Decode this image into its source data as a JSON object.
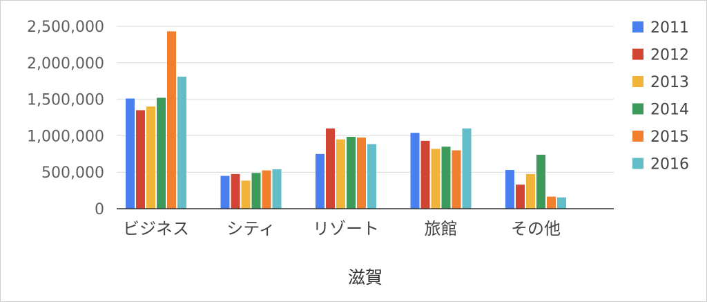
{
  "chart_data": {
    "type": "bar",
    "title": "",
    "xlabel": "滋賀",
    "ylabel": "",
    "categories": [
      "ビジネス",
      "シティ",
      "リゾート",
      "旅館",
      "その他"
    ],
    "ylim": [
      0,
      2500000
    ],
    "yticks": [
      0,
      500000,
      1000000,
      1500000,
      2000000,
      2500000
    ],
    "ytick_labels": [
      "0",
      "500,000",
      "1,000,000",
      "1,500,000",
      "2,000,000",
      "2,500,000"
    ],
    "grid": true,
    "legend_position": "right",
    "series": [
      {
        "name": "2011",
        "color": "#4a7ff0",
        "values": [
          1510000,
          450000,
          750000,
          1040000,
          530000
        ]
      },
      {
        "name": "2012",
        "color": "#d24535",
        "values": [
          1350000,
          475000,
          1100000,
          930000,
          330000
        ]
      },
      {
        "name": "2013",
        "color": "#f1b43a",
        "values": [
          1400000,
          385000,
          950000,
          820000,
          475000
        ]
      },
      {
        "name": "2014",
        "color": "#3c9a5a",
        "values": [
          1520000,
          490000,
          985000,
          850000,
          740000
        ]
      },
      {
        "name": "2015",
        "color": "#f07f2e",
        "values": [
          2430000,
          525000,
          975000,
          800000,
          165000
        ]
      },
      {
        "name": "2016",
        "color": "#63bdc8",
        "values": [
          1810000,
          540000,
          885000,
          1100000,
          155000
        ]
      }
    ]
  }
}
